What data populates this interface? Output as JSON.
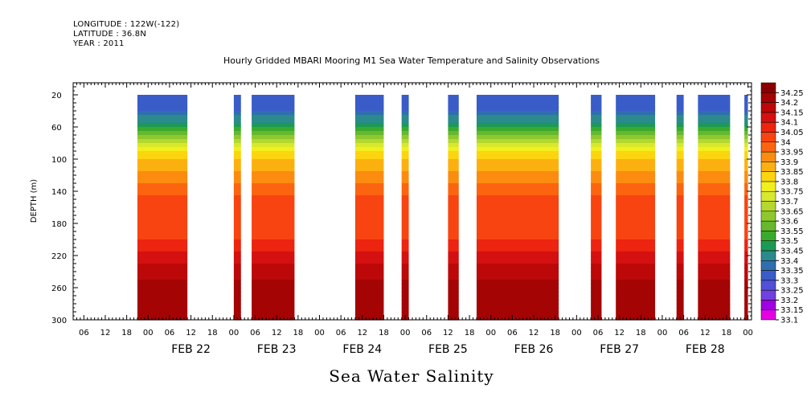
{
  "header": {
    "longitude": "LONGITUDE : 122W(-122)",
    "latitude": "LATITUDE : 36.8N",
    "year": "YEAR : 2011"
  },
  "chart_data": {
    "type": "heatmap",
    "title": "Hourly Gridded MBARI Mooring M1 Sea Water Temperature and Salinity Observations",
    "xlabel": "Sea Water Salinity",
    "ylabel": "DEPTH (m)",
    "y_ticks": [
      20,
      60,
      100,
      140,
      180,
      220,
      260,
      300
    ],
    "ylim": [
      300,
      5
    ],
    "x_hour_ticks": [
      "06",
      "12",
      "18",
      "00",
      "06",
      "12",
      "18",
      "00",
      "06",
      "12",
      "18",
      "00",
      "06",
      "12",
      "18",
      "00",
      "06",
      "12",
      "18",
      "00",
      "06",
      "12",
      "18",
      "00",
      "06",
      "12",
      "18",
      "00",
      "06",
      "12",
      "18",
      "00"
    ],
    "x_day_labels": [
      "FEB 22",
      "FEB 23",
      "FEB 24",
      "FEB 25",
      "FEB 26",
      "FEB 27",
      "FEB 28"
    ],
    "colorbar_levels": [
      33.1,
      33.15,
      33.2,
      33.25,
      33.3,
      33.35,
      33.4,
      33.45,
      33.5,
      33.55,
      33.6,
      33.65,
      33.7,
      33.75,
      33.8,
      33.85,
      33.9,
      33.95,
      34,
      34.05,
      34.1,
      34.15,
      34.2,
      34.25
    ],
    "colorbar_labels": [
      "33.1",
      "33.15",
      "33.2",
      "33.25",
      "33.3",
      "33.35",
      "33.4",
      "33.45",
      "33.5",
      "33.55",
      "33.6",
      "33.65",
      "33.7",
      "33.75",
      "33.8",
      "33.85",
      "33.9",
      "33.95",
      "34",
      "34.05",
      "34.1",
      "34.15",
      "34.2",
      "34.25"
    ],
    "colors": [
      "#e400e4",
      "#a000e4",
      "#7040e0",
      "#5050d8",
      "#3a5cc8",
      "#2f6fae",
      "#2a8a8c",
      "#1c9a54",
      "#3aaa2e",
      "#66b82c",
      "#8ec82e",
      "#b4d82e",
      "#d8e82c",
      "#f2f01c",
      "#fcd410",
      "#fcb010",
      "#fc8c10",
      "#fc6410",
      "#f84410",
      "#ec2410",
      "#d41010",
      "#bc0808",
      "#a40404",
      "#8a0000"
    ],
    "profile": [
      {
        "depth": 20,
        "value": 33.3
      },
      {
        "depth": 40,
        "value": 33.35
      },
      {
        "depth": 55,
        "value": 33.45
      },
      {
        "depth": 70,
        "value": 33.6
      },
      {
        "depth": 85,
        "value": 33.75
      },
      {
        "depth": 100,
        "value": 33.85
      },
      {
        "depth": 115,
        "value": 33.9
      },
      {
        "depth": 130,
        "value": 33.95
      },
      {
        "depth": 145,
        "value": 34.0
      },
      {
        "depth": 170,
        "value": 34.0
      },
      {
        "depth": 200,
        "value": 34.05
      },
      {
        "depth": 215,
        "value": 34.1
      },
      {
        "depth": 230,
        "value": 34.15
      },
      {
        "depth": 250,
        "value": 34.2
      },
      {
        "depth": 262,
        "value": 34.25
      },
      {
        "depth": 275,
        "value": 34.2
      },
      {
        "depth": 300,
        "value": 34.2
      }
    ],
    "data_segments": [
      {
        "start": "FEB 21 21:00",
        "end": "FEB 22 11:00"
      },
      {
        "start": "FEB 23 00:00",
        "end": "FEB 23 02:00"
      },
      {
        "start": "FEB 23 05:00",
        "end": "FEB 23 17:00"
      },
      {
        "start": "FEB 24 23:00",
        "end": "FEB 25 01:00"
      },
      {
        "start": "FEB 24 10:00",
        "end": "FEB 24 18:00"
      },
      {
        "start": "FEB 25 12:00",
        "end": "FEB 25 15:00"
      },
      {
        "start": "FEB 25 20:00",
        "end": "FEB 26 19:00"
      },
      {
        "start": "FEB 27 04:00",
        "end": "FEB 27 07:00"
      },
      {
        "start": "FEB 27 11:00",
        "end": "FEB 27 22:00"
      },
      {
        "start": "FEB 28 04:00",
        "end": "FEB 28 06:00"
      },
      {
        "start": "FEB 28 10:00",
        "end": "FEB 28 19:00"
      },
      {
        "start": "FEB 28 23:00",
        "end": "FEB 29 00:00"
      }
    ]
  }
}
